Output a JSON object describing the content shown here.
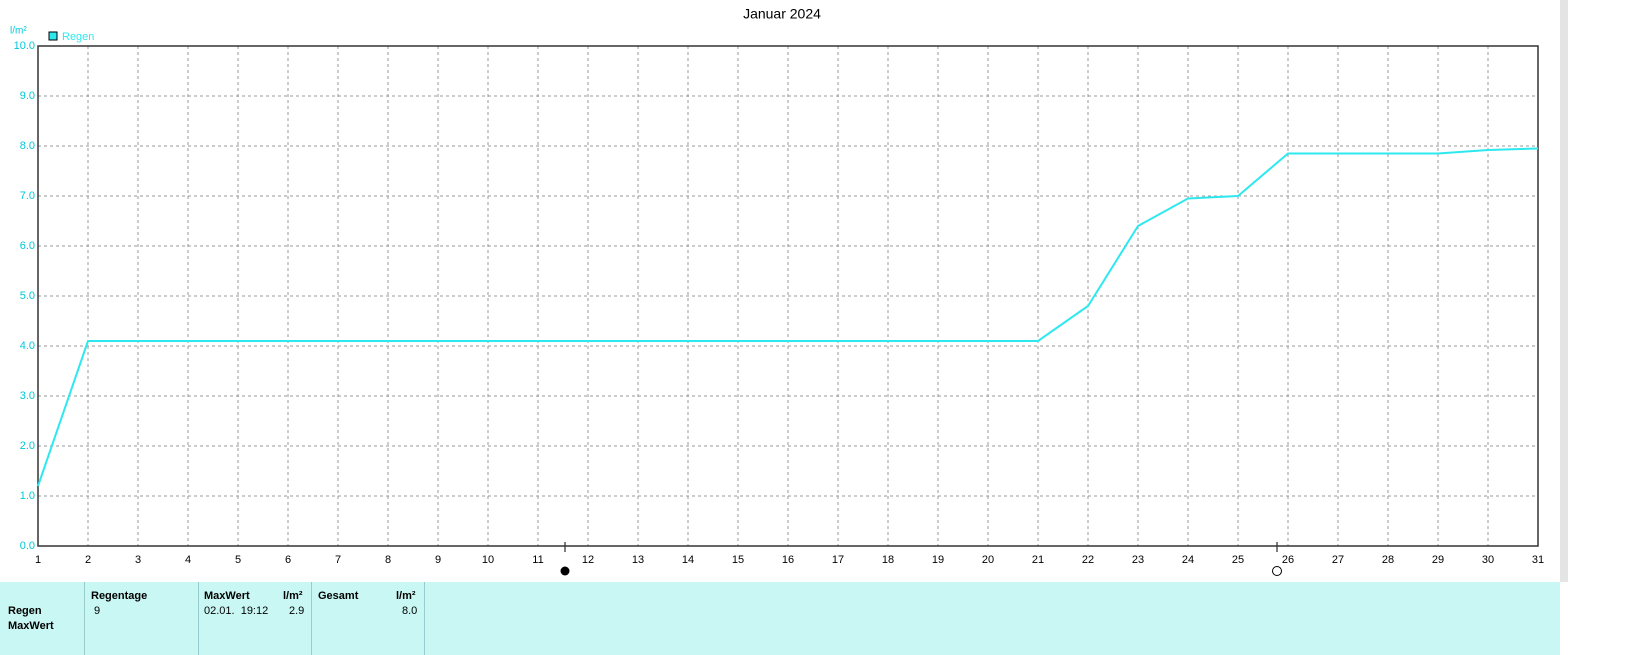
{
  "chart_data": {
    "type": "line",
    "title": "Januar 2024",
    "y_label": "l/m²",
    "x": [
      1,
      2,
      3,
      4,
      5,
      6,
      7,
      8,
      9,
      10,
      11,
      12,
      13,
      14,
      15,
      16,
      17,
      18,
      19,
      20,
      21,
      22,
      23,
      24,
      25,
      26,
      27,
      28,
      29,
      30,
      31
    ],
    "series": [
      {
        "name": "Regen",
        "color": "#2ee8ef",
        "values": [
          1.2,
          4.1,
          4.1,
          4.1,
          4.1,
          4.1,
          4.1,
          4.1,
          4.1,
          4.1,
          4.1,
          4.1,
          4.1,
          4.1,
          4.1,
          4.1,
          4.1,
          4.1,
          4.1,
          4.1,
          4.1,
          4.8,
          6.4,
          6.95,
          7.0,
          7.85,
          7.85,
          7.85,
          7.85,
          7.92,
          7.95
        ]
      }
    ],
    "xlim": [
      1,
      31
    ],
    "xticks": [
      1,
      2,
      3,
      4,
      5,
      6,
      7,
      8,
      9,
      10,
      11,
      12,
      13,
      14,
      15,
      16,
      17,
      18,
      19,
      20,
      21,
      22,
      23,
      24,
      25,
      26,
      27,
      28,
      29,
      30,
      31
    ],
    "ylim": [
      0,
      10
    ],
    "yticks": [
      {
        "value": 0,
        "label": "0.0"
      },
      {
        "value": 1,
        "label": "1.0"
      },
      {
        "value": 2,
        "label": "2.0"
      },
      {
        "value": 3,
        "label": "3.0"
      },
      {
        "value": 4,
        "label": "4.0"
      },
      {
        "value": 5,
        "label": "5.0"
      },
      {
        "value": 6,
        "label": "6.0"
      },
      {
        "value": 7,
        "label": "7.0"
      },
      {
        "value": 8,
        "label": "8.0"
      },
      {
        "value": 9,
        "label": "9.0"
      },
      {
        "value": 10,
        "label": "10.0"
      }
    ],
    "grid": true,
    "legend": "top-left"
  },
  "table": {
    "columns": [
      "Regentage",
      "MaxWert",
      "l/m²",
      "Gesamt",
      "l/m²"
    ],
    "row_labels": [
      "Regen",
      "MaxWert"
    ],
    "cells": [
      "9",
      "02.01.  19:12",
      "2.9",
      "8.0"
    ]
  }
}
